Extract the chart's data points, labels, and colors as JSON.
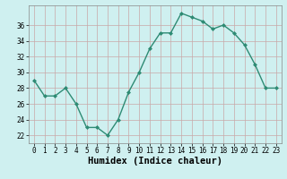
{
  "x": [
    0,
    1,
    2,
    3,
    4,
    5,
    6,
    7,
    8,
    9,
    10,
    11,
    12,
    13,
    14,
    15,
    16,
    17,
    18,
    19,
    20,
    21,
    22,
    23
  ],
  "y": [
    29,
    27,
    27,
    28,
    26,
    23,
    23,
    22,
    24,
    27.5,
    30,
    33,
    35,
    35,
    37.5,
    37,
    36.5,
    35.5,
    36,
    35,
    33.5,
    31,
    28,
    28
  ],
  "line_color": "#2e8b74",
  "marker": "D",
  "marker_size": 2.0,
  "bg_color": "#cff0f0",
  "grid_color": "#c8a8a8",
  "xlabel": "Humidex (Indice chaleur)",
  "xlim": [
    -0.5,
    23.5
  ],
  "ylim": [
    21,
    38.5
  ],
  "yticks": [
    22,
    24,
    26,
    28,
    30,
    32,
    34,
    36
  ],
  "xticks": [
    0,
    1,
    2,
    3,
    4,
    5,
    6,
    7,
    8,
    9,
    10,
    11,
    12,
    13,
    14,
    15,
    16,
    17,
    18,
    19,
    20,
    21,
    22,
    23
  ],
  "tick_fontsize": 5.5,
  "label_fontsize": 7.5,
  "fig_bg_color": "#cff0f0",
  "spine_color": "#888888",
  "line_width": 1.0
}
